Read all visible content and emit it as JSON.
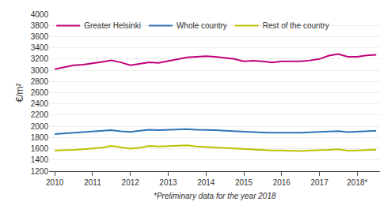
{
  "chart_data": {
    "type": "line",
    "ylabel": "€/m²",
    "annotations": [
      "*Preliminary data for the year 2018"
    ],
    "xlim": [
      2009.85,
      2018.6
    ],
    "xticks": [
      2010,
      2011,
      2012,
      2013,
      2014,
      2015,
      2016,
      2017,
      {
        "value": 2018,
        "label": "2018*"
      }
    ],
    "ylim": [
      1200,
      4000
    ],
    "yticks": [
      1200,
      1400,
      1600,
      1800,
      2000,
      2200,
      2400,
      2600,
      2800,
      3000,
      3200,
      3400,
      3600,
      3800,
      4000
    ],
    "grid": "y",
    "legend": "upper left",
    "x": [
      2010.0,
      2010.25,
      2010.5,
      2010.75,
      2011.0,
      2011.25,
      2011.5,
      2011.75,
      2012.0,
      2012.25,
      2012.5,
      2012.75,
      2013.0,
      2013.25,
      2013.5,
      2013.75,
      2014.0,
      2014.25,
      2014.5,
      2014.75,
      2015.0,
      2015.25,
      2015.5,
      2015.75,
      2016.0,
      2016.25,
      2016.5,
      2016.75,
      2017.0,
      2017.25,
      2017.5,
      2017.75,
      2018.0,
      2018.25,
      2018.5
    ],
    "series": [
      {
        "name": "Greater Helsinki",
        "color": "#c0007a",
        "values": [
          3020,
          3060,
          3090,
          3100,
          3120,
          3150,
          3175,
          3140,
          3090,
          3110,
          3140,
          3130,
          3160,
          3200,
          3230,
          3240,
          3250,
          3240,
          3220,
          3200,
          3160,
          3170,
          3160,
          3140,
          3160,
          3160,
          3160,
          3175,
          3200,
          3260,
          3290,
          3240,
          3240,
          3265,
          3275
        ]
      },
      {
        "name": "Whole country",
        "color": "#2e75b6",
        "values": [
          1860,
          1870,
          1880,
          1890,
          1900,
          1920,
          1930,
          1910,
          1900,
          1920,
          1940,
          1930,
          1940,
          1950,
          1950,
          1940,
          1940,
          1930,
          1920,
          1910,
          1900,
          1900,
          1890,
          1885,
          1890,
          1885,
          1885,
          1890,
          1895,
          1905,
          1915,
          1895,
          1900,
          1910,
          1920
        ]
      },
      {
        "name": "Rest of the country",
        "color": "#bfbf00",
        "values": [
          1570,
          1570,
          1580,
          1590,
          1600,
          1620,
          1650,
          1620,
          1600,
          1620,
          1650,
          1640,
          1650,
          1660,
          1660,
          1640,
          1630,
          1620,
          1610,
          1600,
          1590,
          1590,
          1580,
          1570,
          1570,
          1565,
          1560,
          1570,
          1570,
          1580,
          1590,
          1565,
          1570,
          1580,
          1585
        ]
      }
    ]
  }
}
